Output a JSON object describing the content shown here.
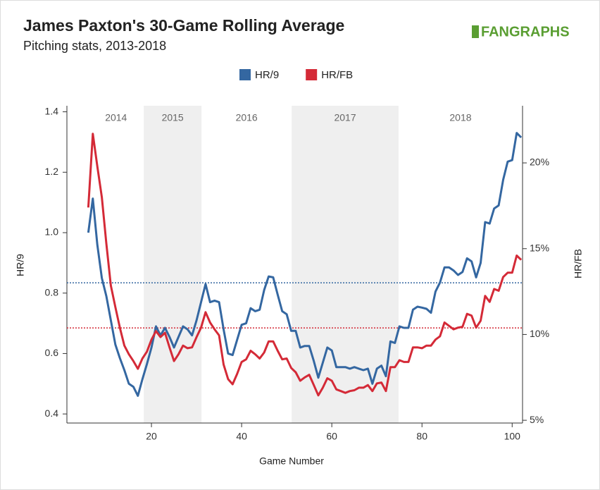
{
  "chart_data": {
    "type": "line",
    "title": "James Paxton's 30-Game Rolling Average",
    "subtitle": "Pitching stats, 2013-2018",
    "logo": "FANGRAPHS",
    "x_label": "Game Number",
    "y_label": "HR/9",
    "y2_label": "HR/FB",
    "x": [
      6,
      7,
      8,
      9,
      10,
      11,
      12,
      13,
      14,
      15,
      16,
      17,
      18,
      19,
      20,
      21,
      22,
      23,
      24,
      25,
      26,
      27,
      28,
      29,
      30,
      31,
      32,
      33,
      34,
      35,
      36,
      37,
      38,
      39,
      40,
      41,
      42,
      43,
      44,
      45,
      46,
      47,
      48,
      49,
      50,
      51,
      52,
      53,
      54,
      55,
      56,
      57,
      58,
      59,
      60,
      61,
      62,
      63,
      64,
      65,
      66,
      67,
      68,
      69,
      70,
      71,
      72,
      73,
      74,
      75,
      76,
      77,
      78,
      79,
      80,
      81,
      82,
      83,
      84,
      85,
      86,
      87,
      88,
      89,
      90,
      91,
      92,
      93,
      94,
      95,
      96,
      97,
      98,
      99,
      100,
      101,
      102
    ],
    "series": [
      {
        "name": "HR/9",
        "color": "#3467a1",
        "axis": "y",
        "values": [
          1.0,
          1.113,
          0.96,
          0.85,
          0.79,
          0.71,
          0.63,
          0.585,
          0.545,
          0.5,
          0.49,
          0.46,
          0.515,
          0.565,
          0.62,
          0.69,
          0.66,
          0.685,
          0.655,
          0.62,
          0.655,
          0.69,
          0.68,
          0.66,
          0.71,
          0.77,
          0.83,
          0.77,
          0.775,
          0.77,
          0.68,
          0.6,
          0.595,
          0.645,
          0.695,
          0.7,
          0.75,
          0.74,
          0.745,
          0.81,
          0.855,
          0.852,
          0.795,
          0.74,
          0.73,
          0.675,
          0.675,
          0.62,
          0.625,
          0.625,
          0.575,
          0.52,
          0.57,
          0.62,
          0.61,
          0.555,
          0.555,
          0.555,
          0.55,
          0.555,
          0.55,
          0.545,
          0.55,
          0.5,
          0.55,
          0.56,
          0.525,
          0.64,
          0.635,
          0.69,
          0.685,
          0.685,
          0.745,
          0.755,
          0.752,
          0.748,
          0.735,
          0.805,
          0.835,
          0.885,
          0.885,
          0.875,
          0.86,
          0.87,
          0.915,
          0.905,
          0.852,
          0.9,
          1.035,
          1.03,
          1.08,
          1.09,
          1.175,
          1.235,
          1.24,
          1.33,
          1.315
        ]
      },
      {
        "name": "HR/FB",
        "color": "#d42a37",
        "axis": "y2",
        "values": [
          17.4,
          21.7,
          19.8,
          18.0,
          15.3,
          12.85,
          11.6,
          10.4,
          9.35,
          8.85,
          8.45,
          8.0,
          8.6,
          9.0,
          9.7,
          10.2,
          9.85,
          10.1,
          9.25,
          8.45,
          8.85,
          9.35,
          9.2,
          9.25,
          9.85,
          10.4,
          11.3,
          10.7,
          10.3,
          9.95,
          8.25,
          7.4,
          7.1,
          7.7,
          8.4,
          8.55,
          9.05,
          8.85,
          8.6,
          8.95,
          9.6,
          9.6,
          9.05,
          8.55,
          8.6,
          8.05,
          7.8,
          7.3,
          7.5,
          7.65,
          7.05,
          6.45,
          6.9,
          7.45,
          7.3,
          6.8,
          6.7,
          6.6,
          6.7,
          6.75,
          6.9,
          6.9,
          7.05,
          6.7,
          7.15,
          7.2,
          6.7,
          8.1,
          8.1,
          8.5,
          8.4,
          8.4,
          9.25,
          9.25,
          9.2,
          9.35,
          9.35,
          9.7,
          9.9,
          10.7,
          10.5,
          10.3,
          10.4,
          10.45,
          11.2,
          11.1,
          10.4,
          10.8,
          12.25,
          11.9,
          12.65,
          12.55,
          13.35,
          13.6,
          13.6,
          14.6,
          14.35
        ]
      }
    ],
    "reference_lines": [
      {
        "axis": "y",
        "value": 0.834,
        "color": "#3467a1"
      },
      {
        "axis": "y2",
        "value": 10.38,
        "color": "#d42a37"
      }
    ],
    "seasons": [
      {
        "label": "2014",
        "start": 6,
        "end": 18.3,
        "shaded": false
      },
      {
        "label": "2015",
        "start": 18.3,
        "end": 31.1,
        "shaded": true
      },
      {
        "label": "2016",
        "start": 31.1,
        "end": 51.1,
        "shaded": false
      },
      {
        "label": "2017",
        "start": 51.1,
        "end": 74.8,
        "shaded": true
      },
      {
        "label": "2018",
        "start": 74.8,
        "end": 102.3,
        "shaded": false
      }
    ],
    "xlim": [
      1.25,
      102.3
    ],
    "xticks": [
      20,
      40,
      60,
      80,
      100
    ],
    "ylim": [
      0.37,
      1.42
    ],
    "yticks": [
      0.4,
      0.6,
      0.8,
      {
        "value": 1,
        "label": "1.0"
      },
      1.2,
      1.4
    ],
    "y2lim": [
      4.84,
      23.33
    ],
    "y2ticks": [
      {
        "value": 5,
        "label": "5%"
      },
      {
        "value": 10,
        "label": "10%"
      },
      {
        "value": 15,
        "label": "15%"
      },
      {
        "value": 20,
        "label": "20%"
      }
    ],
    "legend": "top"
  }
}
